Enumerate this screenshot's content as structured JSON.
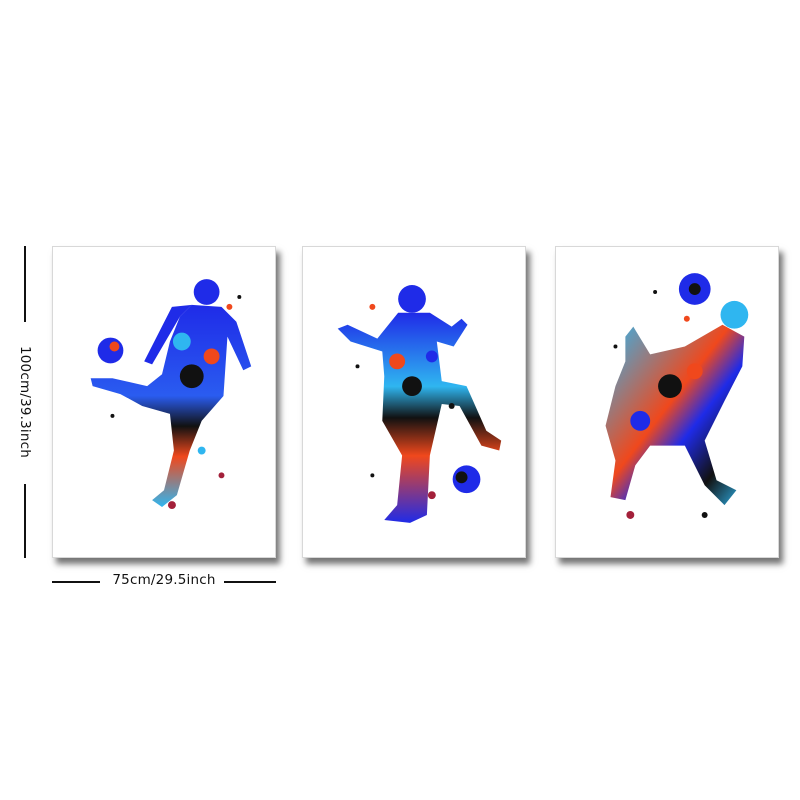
{
  "dimensions": {
    "width_label": "75cm/29.5inch",
    "height_label": "100cm/39.3inch"
  },
  "panels": [
    {
      "name": "panel-left",
      "subject": "soccer player kicking ball"
    },
    {
      "name": "panel-middle",
      "subject": "soccer player juggling ball"
    },
    {
      "name": "panel-right",
      "subject": "soccer player chest control"
    }
  ],
  "colors": {
    "blue": "#1f2be8",
    "sky": "#2fb6f0",
    "orange": "#f0481c",
    "black": "#111111",
    "maroon": "#a3203a"
  }
}
